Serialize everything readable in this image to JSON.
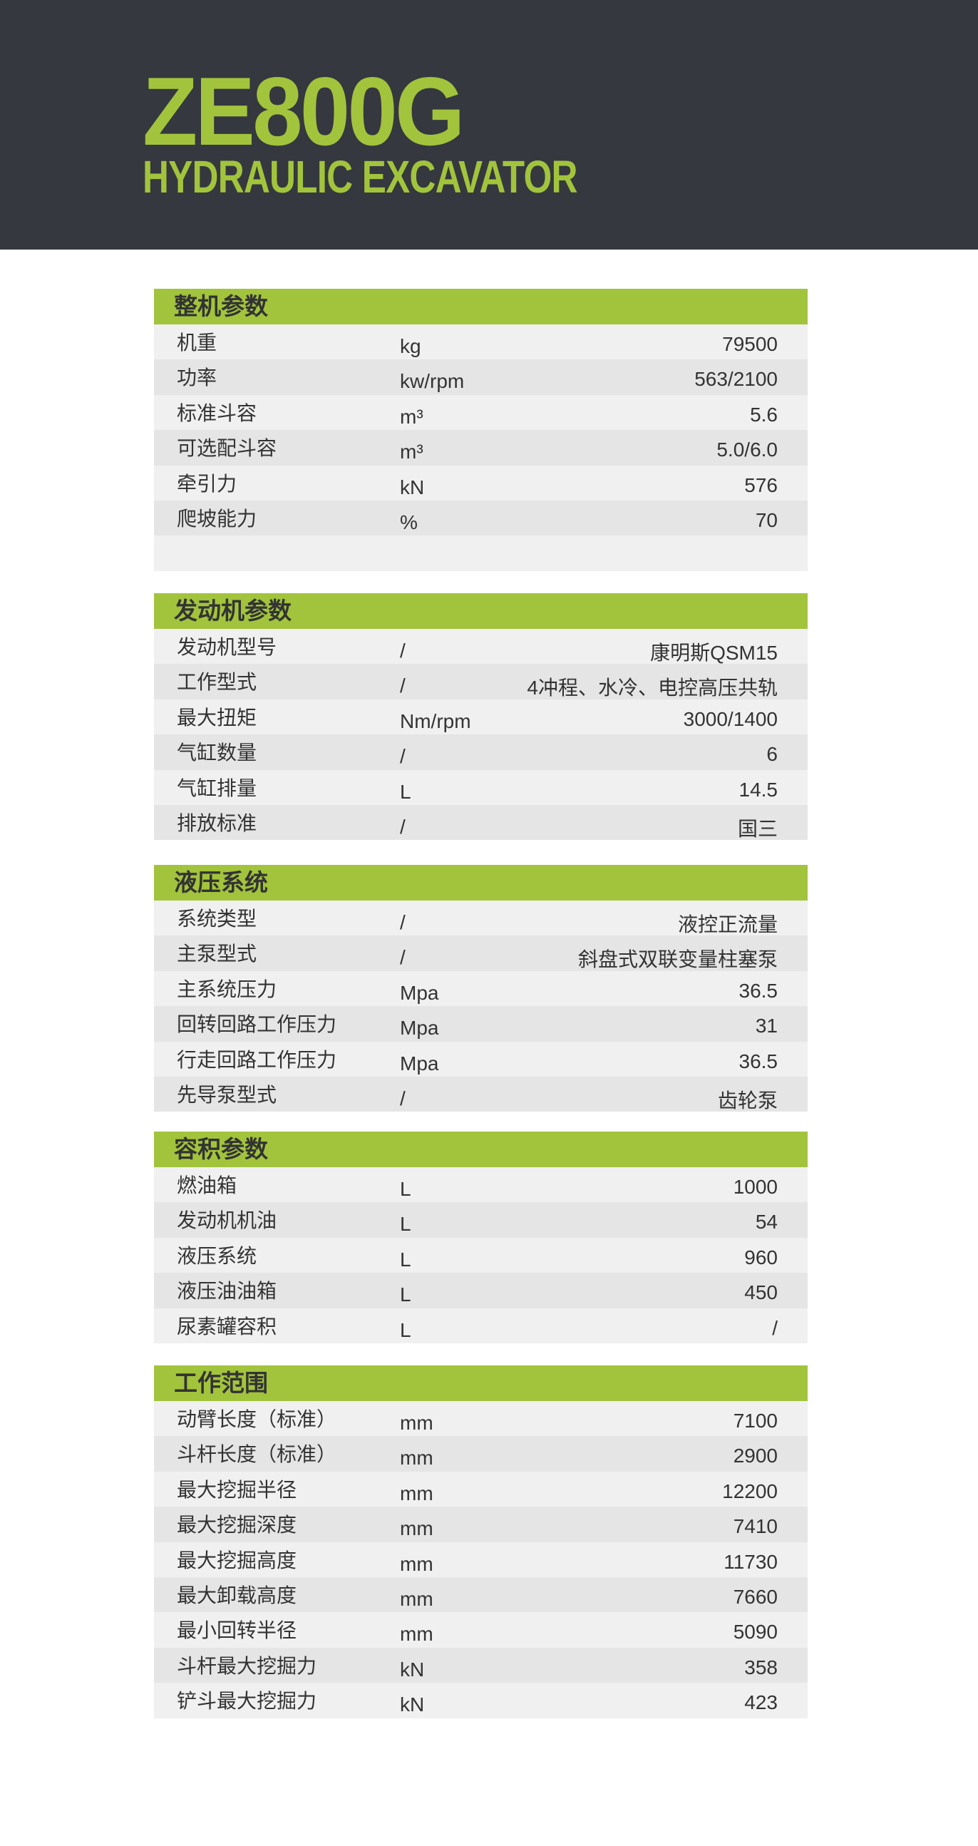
{
  "header": {
    "model": "ZE800G",
    "subtitle": "HYDRAULIC EXCAVATOR"
  },
  "colors": {
    "accent": "#a2c43c",
    "banner": "#35383f",
    "row_light": "#f0f0f0",
    "row_dark": "#e5e5e5"
  },
  "sections": [
    {
      "title": "整机参数",
      "rows": [
        {
          "label": "机重",
          "unit": "kg",
          "value": "79500"
        },
        {
          "label": "功率",
          "unit": "kw/rpm",
          "value": "563/2100"
        },
        {
          "label": "标准斗容",
          "unit": "m³",
          "value": "5.6"
        },
        {
          "label": "可选配斗容",
          "unit": "m³",
          "value": "5.0/6.0"
        },
        {
          "label": "牵引力",
          "unit": "kN",
          "value": "576"
        },
        {
          "label": "爬坡能力",
          "unit": "%",
          "value": "70"
        }
      ]
    },
    {
      "title": "发动机参数",
      "rows": [
        {
          "label": "发动机型号",
          "unit": "/",
          "value": "康明斯QSM15"
        },
        {
          "label": "工作型式",
          "unit": "/",
          "value": "4冲程、水冷、电控高压共轨"
        },
        {
          "label": "最大扭矩",
          "unit": "Nm/rpm",
          "value": "3000/1400"
        },
        {
          "label": "气缸数量",
          "unit": "/",
          "value": "6"
        },
        {
          "label": "气缸排量",
          "unit": "L",
          "value": "14.5"
        },
        {
          "label": "排放标准",
          "unit": "/",
          "value": "国三"
        }
      ]
    },
    {
      "title": "液压系统",
      "rows": [
        {
          "label": "系统类型",
          "unit": "/",
          "value": "液控正流量"
        },
        {
          "label": "主泵型式",
          "unit": "/",
          "value": "斜盘式双联变量柱塞泵"
        },
        {
          "label": "主系统压力",
          "unit": "Mpa",
          "value": "36.5"
        },
        {
          "label": "回转回路工作压力",
          "unit": "Mpa",
          "value": "31"
        },
        {
          "label": "行走回路工作压力",
          "unit": "Mpa",
          "value": "36.5"
        },
        {
          "label": "先导泵型式",
          "unit": "/",
          "value": "齿轮泵"
        }
      ]
    },
    {
      "title": "容积参数",
      "rows": [
        {
          "label": "燃油箱",
          "unit": "L",
          "value": "1000"
        },
        {
          "label": "发动机机油",
          "unit": "L",
          "value": "54"
        },
        {
          "label": "液压系统",
          "unit": "L",
          "value": "960"
        },
        {
          "label": "液压油油箱",
          "unit": "L",
          "value": "450"
        },
        {
          "label": "尿素罐容积",
          "unit": "L",
          "value": "/"
        }
      ]
    },
    {
      "title": "工作范围",
      "rows": [
        {
          "label": "动臂长度（标准）",
          "unit": "mm",
          "value": "7100"
        },
        {
          "label": "斗杆长度（标准）",
          "unit": "mm",
          "value": "2900"
        },
        {
          "label": "最大挖掘半径",
          "unit": "mm",
          "value": "12200"
        },
        {
          "label": "最大挖掘深度",
          "unit": "mm",
          "value": "7410"
        },
        {
          "label": "最大挖掘高度",
          "unit": "mm",
          "value": "11730"
        },
        {
          "label": "最大卸载高度",
          "unit": "mm",
          "value": "7660"
        },
        {
          "label": "最小回转半径",
          "unit": "mm",
          "value": "5090"
        },
        {
          "label": "斗杆最大挖掘力",
          "unit": "kN",
          "value": "358"
        },
        {
          "label": "铲斗最大挖掘力",
          "unit": "kN",
          "value": "423"
        }
      ]
    }
  ]
}
